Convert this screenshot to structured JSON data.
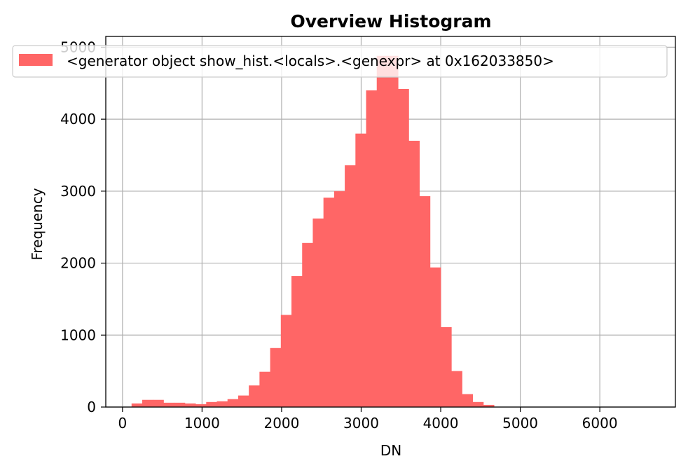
{
  "chart_data": {
    "type": "bar",
    "title": "Overview Histogram",
    "xlabel": "DN",
    "ylabel": "Frequency",
    "xlim": [
      -210,
      6950
    ],
    "ylim": [
      0,
      5150
    ],
    "xticks": [
      {
        "value": 0,
        "label": "0"
      },
      {
        "value": 1000,
        "label": "1000"
      },
      {
        "value": 2000,
        "label": "2000"
      },
      {
        "value": 3000,
        "label": "3000"
      },
      {
        "value": 4000,
        "label": "4000"
      },
      {
        "value": 5000,
        "label": "5000"
      },
      {
        "value": 6000,
        "label": "6000"
      }
    ],
    "yticks": [
      {
        "value": 0,
        "label": "0"
      },
      {
        "value": 1000,
        "label": "1000"
      },
      {
        "value": 2000,
        "label": "2000"
      },
      {
        "value": 3000,
        "label": "3000"
      },
      {
        "value": 4000,
        "label": "4000"
      },
      {
        "value": 5000,
        "label": "5000"
      }
    ],
    "grid": true,
    "legend_position": "upper-right",
    "bar_color": "#ff6666",
    "bin_width": 134,
    "bin_starts": [
      114,
      248,
      382,
      516,
      650,
      784,
      918,
      1052,
      1186,
      1320,
      1454,
      1588,
      1722,
      1856,
      1990,
      2124,
      2258,
      2392,
      2526,
      2660,
      2794,
      2928,
      3062,
      3196,
      3330,
      3464,
      3598,
      3732,
      3866,
      4000,
      4134,
      4268,
      4402,
      4536
    ],
    "values": [
      50,
      100,
      100,
      60,
      60,
      50,
      40,
      70,
      80,
      110,
      160,
      300,
      490,
      820,
      1280,
      1820,
      2280,
      2620,
      2910,
      3000,
      3360,
      3800,
      4400,
      4880,
      4880,
      4420,
      3700,
      2930,
      1940,
      1110,
      500,
      180,
      70,
      30
    ],
    "series": [
      {
        "name": "<generator object show_hist.<locals>.<genexpr> at 0x162033850>",
        "color": "#ff6666"
      }
    ]
  }
}
